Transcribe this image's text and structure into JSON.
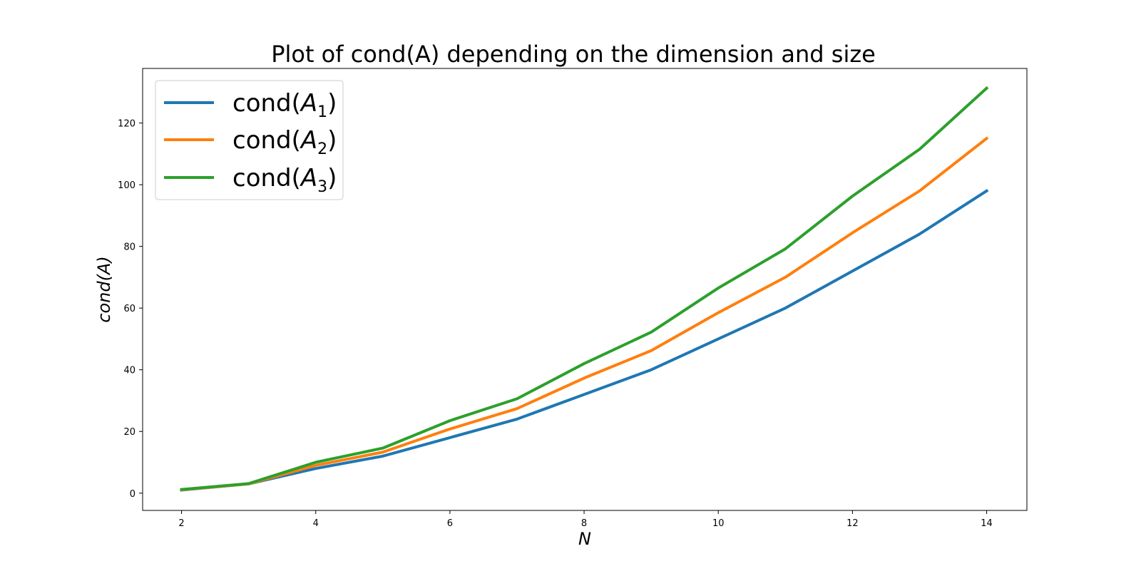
{
  "chart_data": {
    "type": "line",
    "title": "Plot of cond(A) depending on the dimension and size",
    "xlabel": "N",
    "ylabel": "cond(A)",
    "xlim": [
      1.42,
      14.6
    ],
    "ylim": [
      -5.6,
      137.7
    ],
    "xticks": [
      2,
      4,
      6,
      8,
      10,
      12,
      14
    ],
    "yticks": [
      0,
      20,
      40,
      60,
      80,
      100,
      120
    ],
    "grid": false,
    "legend_position": "top-left",
    "x": [
      2,
      3,
      4,
      5,
      6,
      7,
      8,
      9,
      10,
      11,
      12,
      13,
      14
    ],
    "series": [
      {
        "name": "cond(A1)",
        "legend_main": "cond(",
        "legend_var": "A",
        "legend_sub": "1",
        "legend_close": ")",
        "color": "#1f77b4",
        "values": [
          1,
          3,
          8,
          12,
          18,
          24,
          32,
          40,
          50,
          60,
          72,
          84,
          98
        ]
      },
      {
        "name": "cond(A2)",
        "legend_main": "cond(",
        "legend_var": "A",
        "legend_sub": "2",
        "legend_close": ")",
        "color": "#ff7f0e",
        "values": [
          1.1,
          3,
          9,
          13.3,
          20.8,
          27.4,
          37.3,
          46.2,
          58.5,
          70,
          84.4,
          98,
          115
        ]
      },
      {
        "name": "cond(A3)",
        "legend_main": "cond(",
        "legend_var": "A",
        "legend_sub": "3",
        "legend_close": ")",
        "color": "#2ca02c",
        "values": [
          1.2,
          3.1,
          10,
          14.6,
          23.5,
          30.6,
          42,
          52.2,
          66.5,
          79.2,
          96.3,
          111.5,
          131.3
        ]
      }
    ]
  }
}
